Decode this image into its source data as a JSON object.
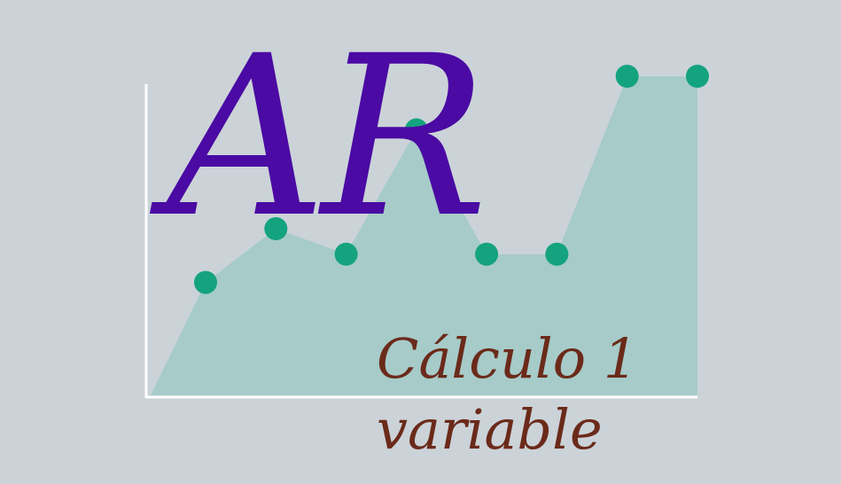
{
  "logo": {
    "title": "AR",
    "subtitle_line1": "Cálculo 1",
    "subtitle_line2": "variable"
  },
  "colors": {
    "background": "#CBD3D8",
    "axis": "#FFFFFF",
    "area_fill": "#A6CBC8",
    "point": "#14A37F",
    "title": "#4A0AA3",
    "subtitle": "#6B2A1A"
  },
  "chart_data": {
    "type": "area",
    "x": [
      1,
      2,
      3,
      4,
      5,
      6,
      7,
      8
    ],
    "values": [
      4,
      5.9,
      5,
      9.4,
      5,
      5,
      11.3,
      11.3
    ],
    "ylim": [
      0,
      14
    ],
    "markers": true,
    "grid": false,
    "title": "",
    "xlabel": "",
    "ylabel": ""
  }
}
